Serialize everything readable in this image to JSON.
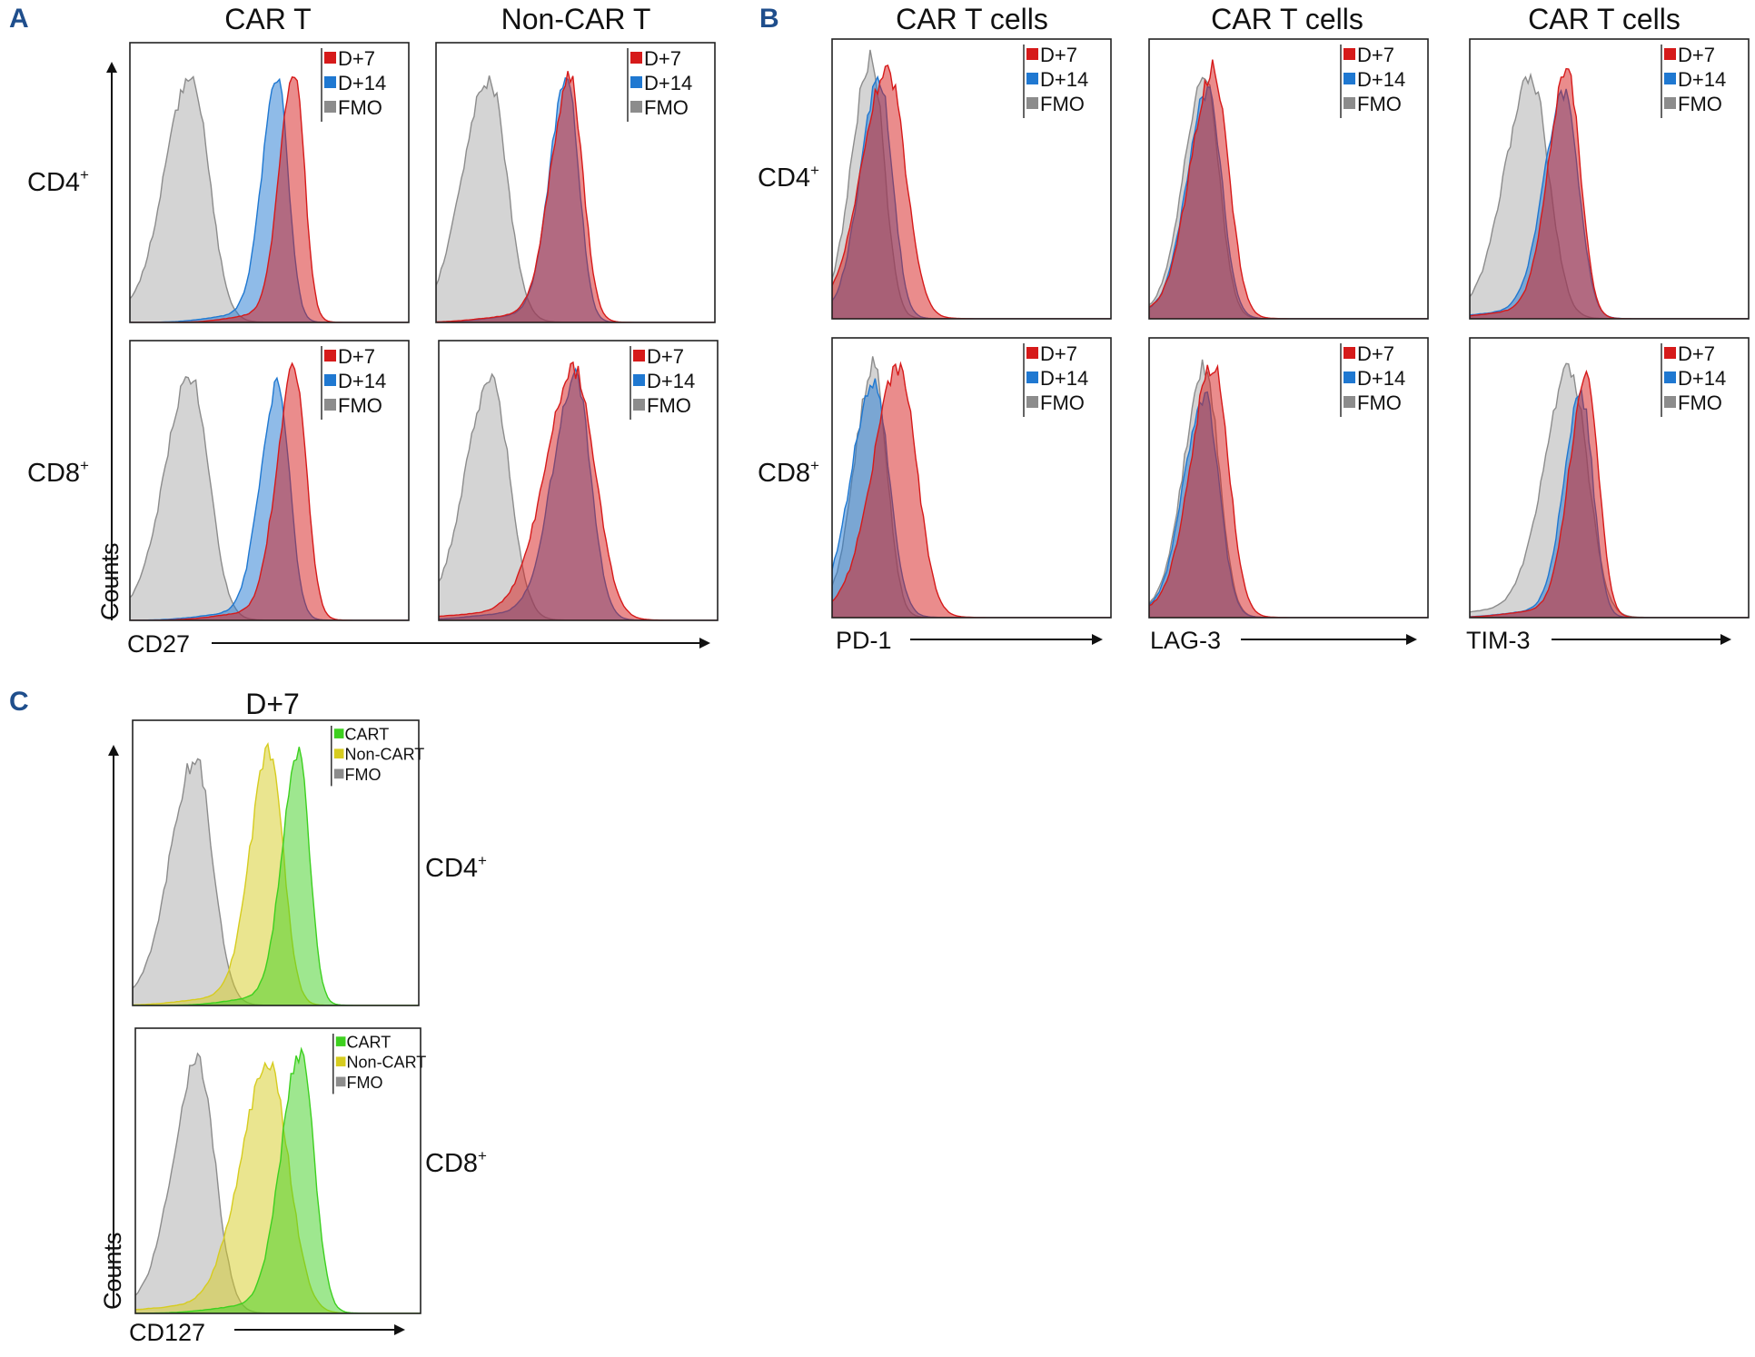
{
  "panels": {
    "A": {
      "letter": "A",
      "col_titles": [
        "CAR T",
        "Non-CAR T"
      ],
      "row_labels": [
        {
          "main": "CD4",
          "sup": "+"
        },
        {
          "main": "CD8",
          "sup": "+"
        }
      ],
      "ylabel": "Counts",
      "xlabel": "CD27"
    },
    "B": {
      "letter": "B",
      "col_titles": [
        "CAR T cells",
        "CAR T cells",
        "CAR T cells"
      ],
      "row_labels": [
        {
          "main": "CD4",
          "sup": "+"
        },
        {
          "main": "CD8",
          "sup": "+"
        }
      ],
      "xlabels": [
        "PD-1",
        "LAG-3",
        "TIM-3"
      ]
    },
    "C": {
      "letter": "C",
      "col_titles": [
        "D+7"
      ],
      "row_labels": [
        {
          "main": "CD4",
          "sup": "+"
        },
        {
          "main": "CD8",
          "sup": "+"
        }
      ],
      "ylabel": "Counts",
      "xlabel": "CD127"
    }
  },
  "legends": {
    "days": [
      "D+7",
      "D+14",
      "FMO"
    ],
    "cells": [
      "CART",
      "Non-CART",
      "FMO"
    ]
  },
  "colors": {
    "D+7": "#d61a1a",
    "D+14": "#1f78d1",
    "FMO": "#8c8c8c",
    "CART": "#3dd01f",
    "Non-CART": "#d6cc1f",
    "panel_letter": "#1f4e8c"
  },
  "chart_data": [
    {
      "id": "A-CD4-CART",
      "type": "histogram-overlay",
      "title": "CAR T",
      "row": "CD4+",
      "xlabel": "CD27",
      "ylabel": "Counts",
      "xlim": [
        0,
        1
      ],
      "ylim": [
        0,
        1
      ],
      "series": [
        {
          "name": "FMO",
          "peak": 0.22,
          "width": 0.075,
          "height": 0.87
        },
        {
          "name": "D+14",
          "peak": 0.53,
          "width": 0.045,
          "height": 0.85
        },
        {
          "name": "D+7",
          "peak": 0.59,
          "width": 0.042,
          "height": 0.89
        }
      ]
    },
    {
      "id": "A-CD4-NonCART",
      "type": "histogram-overlay",
      "title": "Non-CAR T",
      "row": "CD4+",
      "xlabel": "CD27",
      "ylabel": "Counts",
      "xlim": [
        0,
        1
      ],
      "ylim": [
        0,
        1
      ],
      "series": [
        {
          "name": "FMO",
          "peak": 0.19,
          "width": 0.075,
          "height": 0.86
        },
        {
          "name": "D+14",
          "peak": 0.47,
          "width": 0.05,
          "height": 0.87
        },
        {
          "name": "D+7",
          "peak": 0.48,
          "width": 0.055,
          "height": 0.86
        }
      ]
    },
    {
      "id": "A-CD8-CART",
      "type": "histogram-overlay",
      "title": "CAR T",
      "row": "CD8+",
      "xlabel": "CD27",
      "ylabel": "Counts",
      "xlim": [
        0,
        1
      ],
      "ylim": [
        0,
        1
      ],
      "series": [
        {
          "name": "FMO",
          "peak": 0.22,
          "width": 0.075,
          "height": 0.86
        },
        {
          "name": "D+14",
          "peak": 0.53,
          "width": 0.05,
          "height": 0.83
        },
        {
          "name": "D+7",
          "peak": 0.59,
          "width": 0.05,
          "height": 0.89
        }
      ]
    },
    {
      "id": "A-CD8-NonCART",
      "type": "histogram-overlay",
      "title": "Non-CAR T",
      "row": "CD8+",
      "xlabel": "CD27",
      "ylabel": "Counts",
      "xlim": [
        0,
        1
      ],
      "ylim": [
        0,
        1
      ],
      "series": [
        {
          "name": "FMO",
          "peak": 0.19,
          "width": 0.075,
          "height": 0.85
        },
        {
          "name": "D+14",
          "peak": 0.49,
          "width": 0.065,
          "height": 0.86
        },
        {
          "name": "D+7",
          "peak": 0.49,
          "width": 0.085,
          "height": 0.88
        }
      ]
    },
    {
      "id": "B-CD4-PD1",
      "type": "histogram-overlay",
      "title": "CAR T cells",
      "row": "CD4+",
      "xlabel": "PD-1",
      "xlim": [
        0,
        1
      ],
      "ylim": [
        0,
        1
      ],
      "series": [
        {
          "name": "FMO",
          "peak": 0.14,
          "width": 0.055,
          "height": 0.92
        },
        {
          "name": "D+14",
          "peak": 0.17,
          "width": 0.055,
          "height": 0.84
        },
        {
          "name": "D+7",
          "peak": 0.2,
          "width": 0.075,
          "height": 0.87
        }
      ]
    },
    {
      "id": "B-CD4-LAG3",
      "type": "histogram-overlay",
      "title": "CAR T cells",
      "row": "CD4+",
      "xlabel": "LAG-3",
      "xlim": [
        0,
        1
      ],
      "ylim": [
        0,
        1
      ],
      "series": [
        {
          "name": "FMO",
          "peak": 0.2,
          "width": 0.06,
          "height": 0.85
        },
        {
          "name": "D+14",
          "peak": 0.21,
          "width": 0.06,
          "height": 0.8
        },
        {
          "name": "D+7",
          "peak": 0.23,
          "width": 0.065,
          "height": 0.88
        }
      ]
    },
    {
      "id": "B-CD4-TIM3",
      "type": "histogram-overlay",
      "title": "CAR T cells",
      "row": "CD4+",
      "xlabel": "TIM-3",
      "xlim": [
        0,
        1
      ],
      "ylim": [
        0,
        1
      ],
      "series": [
        {
          "name": "FMO",
          "peak": 0.22,
          "width": 0.075,
          "height": 0.85
        },
        {
          "name": "D+14",
          "peak": 0.34,
          "width": 0.06,
          "height": 0.8
        },
        {
          "name": "D+7",
          "peak": 0.35,
          "width": 0.055,
          "height": 0.88
        }
      ]
    },
    {
      "id": "B-CD8-PD1",
      "type": "histogram-overlay",
      "title": "CAR T cells",
      "row": "CD8+",
      "xlabel": "PD-1",
      "xlim": [
        0,
        1
      ],
      "ylim": [
        0,
        1
      ],
      "series": [
        {
          "name": "FMO",
          "peak": 0.15,
          "width": 0.055,
          "height": 0.89
        },
        {
          "name": "D+14",
          "peak": 0.15,
          "width": 0.065,
          "height": 0.82
        },
        {
          "name": "D+7",
          "peak": 0.24,
          "width": 0.075,
          "height": 0.88
        }
      ]
    },
    {
      "id": "B-CD8-LAG3",
      "type": "histogram-overlay",
      "title": "CAR T cells",
      "row": "CD8+",
      "xlabel": "LAG-3",
      "xlim": [
        0,
        1
      ],
      "ylim": [
        0,
        1
      ],
      "series": [
        {
          "name": "FMO",
          "peak": 0.2,
          "width": 0.06,
          "height": 0.88
        },
        {
          "name": "D+14",
          "peak": 0.2,
          "width": 0.06,
          "height": 0.78
        },
        {
          "name": "D+7",
          "peak": 0.23,
          "width": 0.065,
          "height": 0.89
        }
      ]
    },
    {
      "id": "B-CD8-TIM3",
      "type": "histogram-overlay",
      "title": "CAR T cells",
      "row": "CD8+",
      "xlabel": "TIM-3",
      "xlim": [
        0,
        1
      ],
      "ylim": [
        0,
        1
      ],
      "series": [
        {
          "name": "FMO",
          "peak": 0.36,
          "width": 0.075,
          "height": 0.87
        },
        {
          "name": "D+14",
          "peak": 0.4,
          "width": 0.05,
          "height": 0.78
        },
        {
          "name": "D+7",
          "peak": 0.42,
          "width": 0.05,
          "height": 0.86
        }
      ]
    },
    {
      "id": "C-CD4",
      "type": "histogram-overlay",
      "title": "D+7",
      "row": "CD4+",
      "xlabel": "CD127",
      "ylabel": "Counts",
      "xlim": [
        0,
        1
      ],
      "ylim": [
        0,
        1
      ],
      "series": [
        {
          "name": "FMO",
          "peak": 0.22,
          "width": 0.07,
          "height": 0.85
        },
        {
          "name": "Non-CART",
          "peak": 0.48,
          "width": 0.055,
          "height": 0.88
        },
        {
          "name": "CART",
          "peak": 0.58,
          "width": 0.045,
          "height": 0.88
        }
      ]
    },
    {
      "id": "C-CD8",
      "type": "histogram-overlay",
      "title": "D+7",
      "row": "CD8+",
      "xlabel": "CD127",
      "ylabel": "Counts",
      "xlim": [
        0,
        1
      ],
      "ylim": [
        0,
        1
      ],
      "series": [
        {
          "name": "FMO",
          "peak": 0.22,
          "width": 0.07,
          "height": 0.87
        },
        {
          "name": "Non-CART",
          "peak": 0.47,
          "width": 0.08,
          "height": 0.86
        },
        {
          "name": "CART",
          "peak": 0.58,
          "width": 0.055,
          "height": 0.9
        }
      ]
    }
  ]
}
